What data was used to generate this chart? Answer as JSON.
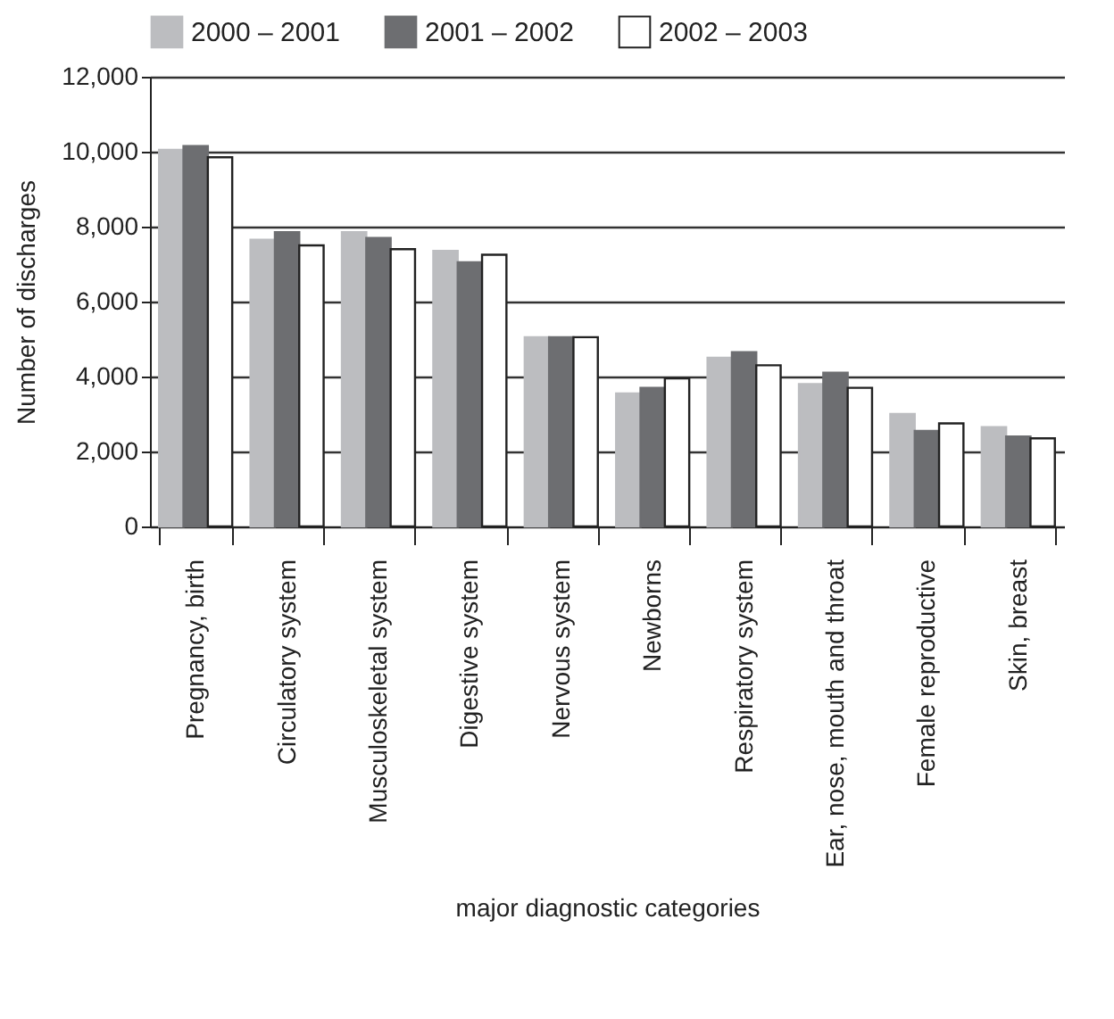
{
  "chart_data": {
    "type": "bar",
    "xlabel": "major diagnostic categories",
    "ylabel": "Number of discharges",
    "categories": [
      "Pregnancy, birth",
      "Circulatory system",
      "Musculoskeletal system",
      "Digestive system",
      "Nervous system",
      "Newborns",
      "Respiratory system",
      "Ear, nose, mouth and throat",
      "Female reproductive",
      "Skin, breast"
    ],
    "series": [
      {
        "name": "2000 – 2001",
        "color": "#bcbdc0",
        "values": [
          10050,
          7650,
          7850,
          7350,
          5050,
          3550,
          4500,
          3800,
          3000,
          2650
        ]
      },
      {
        "name": "2001 – 2002",
        "color": "#6d6e71",
        "values": [
          10150,
          7850,
          7700,
          7050,
          5050,
          3700,
          4650,
          4100,
          2550,
          2400
        ]
      },
      {
        "name": "2002 – 2003",
        "color": "#ffffff",
        "values": [
          9850,
          7500,
          7400,
          7250,
          5050,
          3950,
          4300,
          3700,
          2750,
          2350
        ]
      }
    ],
    "ylim": [
      0,
      12000
    ],
    "yticks": [
      {
        "value": 0,
        "label": "0"
      },
      {
        "value": 2000,
        "label": "2,000"
      },
      {
        "value": 4000,
        "label": "4,000"
      },
      {
        "value": 6000,
        "label": "6,000"
      },
      {
        "value": 8000,
        "label": "8,000"
      },
      {
        "value": 10000,
        "label": "10,000"
      },
      {
        "value": 12000,
        "label": "12,000"
      }
    ],
    "grid": "y",
    "legend": "top"
  }
}
